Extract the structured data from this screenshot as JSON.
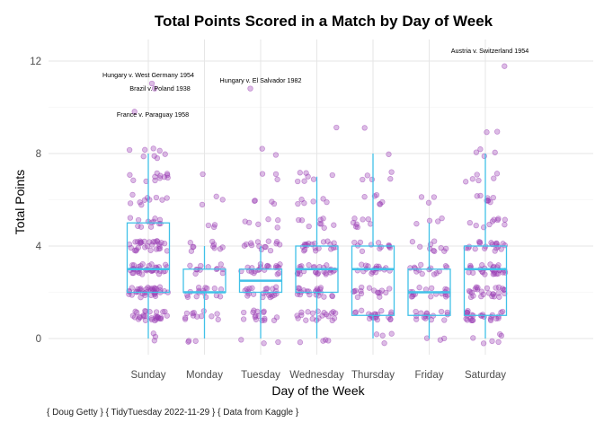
{
  "chart_data": {
    "type": "box",
    "title": "Total Points Scored in a Match by Day of Week",
    "xlabel": "Day of the Week",
    "ylabel": "Total Points",
    "caption": "{ Doug Getty } { TidyTuesday 2022-11-29 } { Data from Kaggle }",
    "categories": [
      "Sunday",
      "Monday",
      "Tuesday",
      "Wednesday",
      "Thursday",
      "Friday",
      "Saturday"
    ],
    "ylim": [
      -0.5,
      13.2
    ],
    "yticks": [
      0,
      4,
      8,
      12
    ],
    "grid": true,
    "colors": {
      "box": "#41c1e8",
      "points": "#9b3fb5",
      "grid": "#e6e6e6"
    },
    "boxes": [
      {
        "category": "Sunday",
        "min": 0,
        "q1": 2,
        "median": 3,
        "q3": 5,
        "max": 8
      },
      {
        "category": "Monday",
        "min": 0,
        "q1": 2,
        "median": 2,
        "q3": 3,
        "max": 4
      },
      {
        "category": "Tuesday",
        "min": 0,
        "q1": 2,
        "median": 2.5,
        "q3": 3,
        "max": 4
      },
      {
        "category": "Wednesday",
        "min": 0,
        "q1": 2,
        "median": 3,
        "q3": 4,
        "max": 7
      },
      {
        "category": "Thursday",
        "min": 0,
        "q1": 1,
        "median": 3,
        "q3": 4,
        "max": 8
      },
      {
        "category": "Friday",
        "min": 0,
        "q1": 1,
        "median": 2,
        "q3": 3,
        "max": 5
      },
      {
        "category": "Saturday",
        "min": 0,
        "q1": 1,
        "median": 3,
        "q3": 4,
        "max": 8
      }
    ],
    "point_counts": [
      {
        "category": "Sunday",
        "values": {
          "0": 3,
          "1": 30,
          "2": 38,
          "3": 36,
          "4": 30,
          "5": 12,
          "6": 10,
          "7": 12,
          "8": 8,
          "10": 1,
          "11": 2
        }
      },
      {
        "category": "Monday",
        "values": {
          "0": 3,
          "1": 12,
          "2": 16,
          "3": 12,
          "4": 10,
          "5": 3,
          "6": 3,
          "7": 1
        }
      },
      {
        "category": "Tuesday",
        "values": {
          "0": 3,
          "1": 16,
          "2": 22,
          "3": 22,
          "4": 14,
          "5": 6,
          "6": 4,
          "7": 3,
          "8": 2,
          "11": 1
        }
      },
      {
        "category": "Wednesday",
        "values": {
          "0": 4,
          "1": 20,
          "2": 22,
          "3": 26,
          "4": 20,
          "5": 9,
          "6": 6,
          "7": 7,
          "9": 1
        }
      },
      {
        "category": "Thursday",
        "values": {
          "0": 4,
          "1": 20,
          "2": 16,
          "3": 18,
          "4": 12,
          "5": 8,
          "6": 6,
          "7": 5,
          "8": 1,
          "9": 1
        }
      },
      {
        "category": "Friday",
        "values": {
          "0": 3,
          "1": 16,
          "2": 18,
          "3": 14,
          "4": 10,
          "5": 4,
          "6": 3
        }
      },
      {
        "category": "Saturday",
        "values": {
          "0": 6,
          "1": 26,
          "2": 26,
          "3": 28,
          "4": 20,
          "5": 10,
          "6": 8,
          "7": 6,
          "8": 4,
          "9": 2,
          "12": 1
        }
      }
    ],
    "annotations": [
      {
        "label": "Austria v. Switzerland 1954",
        "category": "Saturday",
        "y": 12
      },
      {
        "label": "Hungary v. West Germany 1954",
        "category": "Sunday",
        "y": 11
      },
      {
        "label": "Brazil v. Poland 1938",
        "category": "Sunday",
        "y": 11
      },
      {
        "label": "Hungary v. El Salvador 1982",
        "category": "Tuesday",
        "y": 11
      },
      {
        "label": "France v. Paraguay 1958",
        "category": "Sunday",
        "y": 10
      }
    ]
  }
}
